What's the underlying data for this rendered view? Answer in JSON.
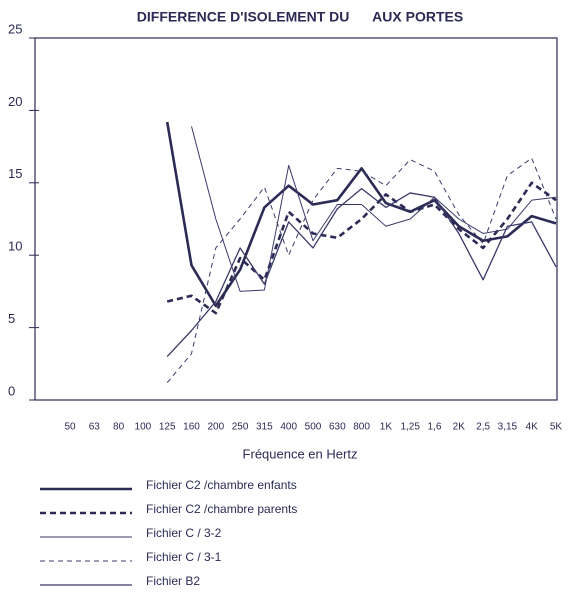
{
  "chart_data": {
    "type": "line",
    "title": "DIFFERENCE D'ISOLEMENT DU      AUX PORTES",
    "x_label": "Fréquence en Hertz",
    "categories": [
      "50",
      "63",
      "80",
      "100",
      "125",
      "160",
      "200",
      "250",
      "315",
      "400",
      "500",
      "630",
      "800",
      "1K",
      "1,25",
      "1,6",
      "2K",
      "2,5",
      "3,15",
      "4K",
      "5K"
    ],
    "ylim": [
      0,
      25
    ],
    "yticks": [
      0,
      5,
      10,
      15,
      20,
      25
    ],
    "series": [
      {
        "name": "Fichier C2 /chambre enfants",
        "color": "#2b2b55",
        "width": 2.6,
        "dash": "none",
        "values": [
          null,
          null,
          null,
          null,
          19.2,
          9.3,
          6.5,
          9.0,
          13.3,
          14.8,
          13.5,
          13.8,
          16.0,
          13.6,
          13.0,
          13.8,
          12.0,
          11.0,
          11.3,
          12.7,
          12.2
        ]
      },
      {
        "name": "Fichier C2 /chambre parents",
        "color": "#2b2b55",
        "width": 2.6,
        "dash": "6 4",
        "values": [
          null,
          null,
          null,
          null,
          6.8,
          7.2,
          6.0,
          9.8,
          8.3,
          13.0,
          11.5,
          11.2,
          12.5,
          14.2,
          13.0,
          13.5,
          11.8,
          10.5,
          12.5,
          15.0,
          13.8
        ]
      },
      {
        "name": "Fichier C / 3-2",
        "color": "#3a3a6a",
        "width": 1,
        "dash": "none",
        "values": [
          null,
          null,
          null,
          null,
          null,
          18.9,
          12.5,
          7.5,
          7.6,
          16.2,
          11.0,
          13.5,
          13.5,
          12.0,
          12.5,
          14.0,
          12.5,
          11.5,
          11.8,
          13.8,
          14.0
        ]
      },
      {
        "name": "Fichier C / 3-1",
        "color": "#3a3a6a",
        "width": 1,
        "dash": "5 4",
        "values": [
          null,
          null,
          null,
          null,
          1.2,
          3.2,
          10.5,
          12.5,
          14.7,
          10.0,
          13.8,
          16.0,
          15.8,
          14.8,
          16.6,
          15.8,
          12.8,
          10.8,
          15.5,
          16.7,
          12.5
        ]
      },
      {
        "name": "Fichier B2",
        "color": "#3a3a6a",
        "width": 1.3,
        "dash": "none",
        "values": [
          null,
          null,
          null,
          null,
          3.0,
          4.8,
          6.8,
          10.5,
          8.0,
          12.3,
          10.5,
          13.2,
          14.6,
          13.3,
          14.3,
          14.0,
          11.5,
          8.3,
          12.0,
          12.3,
          9.2
        ]
      }
    ]
  }
}
